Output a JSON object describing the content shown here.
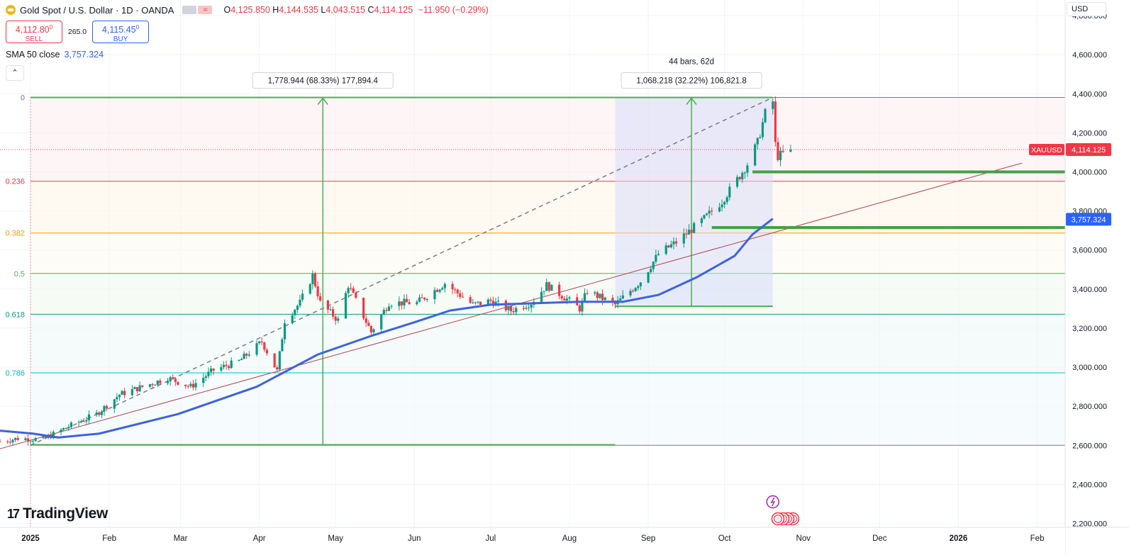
{
  "header": {
    "title": "Gold Spot / U.S. Dollar · 1D · OANDA",
    "market_badge": "≈",
    "open_label": "O",
    "open": "4,125.850",
    "high_label": "H",
    "high": "4,144.535",
    "low_label": "L",
    "low": "4,043.515",
    "close_label": "C",
    "close": "4,114.125",
    "change": "−11.950 (−0.29%)"
  },
  "trade": {
    "sell_price": "4,112.80",
    "sell_sup": "0",
    "sell_label": "SELL",
    "spread": "265.0",
    "buy_price": "4,115.45",
    "buy_sup": "0",
    "buy_label": "BUY"
  },
  "indicator": {
    "label": "SMA 50 close",
    "value": "3,757.324"
  },
  "collapse_label": "⌃",
  "currency": "USD",
  "logo_text": "TradingView",
  "logo_mark": "17",
  "chart_data": {
    "type": "candlestick",
    "symbol": "XAUUSD",
    "ylim": [
      2180,
      4880
    ],
    "y_ticks": [
      "2,200.000",
      "2,400.000",
      "2,600.000",
      "2,800.000",
      "3,000.000",
      "3,200.000",
      "3,400.000",
      "3,600.000",
      "3,800.000",
      "4,000.000",
      "4,200.000",
      "4,400.000",
      "4,600.000",
      "4,800.000"
    ],
    "y_tick_values": [
      2200,
      2400,
      2600,
      2800,
      3000,
      3200,
      3400,
      3600,
      3800,
      4000,
      4200,
      4400,
      4600,
      4800
    ],
    "x_range": [
      "2024-12-20",
      "2026-02-12"
    ],
    "x_labels": [
      {
        "date": "2025-01-01",
        "label": "2025",
        "bold": true
      },
      {
        "date": "2025-02-01",
        "label": "Feb"
      },
      {
        "date": "2025-03-01",
        "label": "Mar"
      },
      {
        "date": "2025-04-01",
        "label": "Apr"
      },
      {
        "date": "2025-05-01",
        "label": "May"
      },
      {
        "date": "2025-06-01",
        "label": "Jun"
      },
      {
        "date": "2025-07-01",
        "label": "Jul"
      },
      {
        "date": "2025-08-01",
        "label": "Aug"
      },
      {
        "date": "2025-09-01",
        "label": "Sep"
      },
      {
        "date": "2025-10-01",
        "label": "Oct"
      },
      {
        "date": "2025-11-01",
        "label": "Nov"
      },
      {
        "date": "2025-12-01",
        "label": "Dec"
      },
      {
        "date": "2026-01-01",
        "label": "2026",
        "bold": true
      },
      {
        "date": "2026-02-01",
        "label": "Feb"
      }
    ],
    "price_path": [
      [
        "2024-12-20",
        2620
      ],
      [
        "2024-12-27",
        2635
      ],
      [
        "2025-01-06",
        2630
      ],
      [
        "2025-01-15",
        2690
      ],
      [
        "2025-01-27",
        2760
      ],
      [
        "2025-02-05",
        2860
      ],
      [
        "2025-02-14",
        2900
      ],
      [
        "2025-02-24",
        2945
      ],
      [
        "2025-03-05",
        2900
      ],
      [
        "2025-03-14",
        2985
      ],
      [
        "2025-03-24",
        3030
      ],
      [
        "2025-04-02",
        3130
      ],
      [
        "2025-04-08",
        2980
      ],
      [
        "2025-04-11",
        3240
      ],
      [
        "2025-04-17",
        3330
      ],
      [
        "2025-04-22",
        3470
      ],
      [
        "2025-04-25",
        3330
      ],
      [
        "2025-05-02",
        3240
      ],
      [
        "2025-05-06",
        3420
      ],
      [
        "2025-05-15",
        3180
      ],
      [
        "2025-05-22",
        3330
      ],
      [
        "2025-06-02",
        3330
      ],
      [
        "2025-06-13",
        3430
      ],
      [
        "2025-06-24",
        3320
      ],
      [
        "2025-07-01",
        3340
      ],
      [
        "2025-07-09",
        3290
      ],
      [
        "2025-07-17",
        3330
      ],
      [
        "2025-07-23",
        3420
      ],
      [
        "2025-08-01",
        3340
      ],
      [
        "2025-08-05",
        3300
      ],
      [
        "2025-08-08",
        3390
      ],
      [
        "2025-08-19",
        3320
      ],
      [
        "2025-08-29",
        3440
      ],
      [
        "2025-09-05",
        3580
      ],
      [
        "2025-09-12",
        3640
      ],
      [
        "2025-09-23",
        3760
      ],
      [
        "2025-09-30",
        3850
      ],
      [
        "2025-10-07",
        3980
      ],
      [
        "2025-10-10",
        4040
      ],
      [
        "2025-10-14",
        4150
      ],
      [
        "2025-10-17",
        4300
      ],
      [
        "2025-10-20",
        4360
      ],
      [
        "2025-10-21",
        4140
      ],
      [
        "2025-10-22",
        4080
      ],
      [
        "2025-10-27",
        4114
      ]
    ],
    "sma50_path": [
      [
        "2024-12-20",
        2675
      ],
      [
        "2025-01-02",
        2660
      ],
      [
        "2025-01-12",
        2640
      ],
      [
        "2025-01-28",
        2660
      ],
      [
        "2025-02-28",
        2760
      ],
      [
        "2025-03-31",
        2900
      ],
      [
        "2025-04-24",
        3065
      ],
      [
        "2025-05-15",
        3160
      ],
      [
        "2025-06-01",
        3230
      ],
      [
        "2025-06-15",
        3290
      ],
      [
        "2025-07-01",
        3320
      ],
      [
        "2025-08-05",
        3335
      ],
      [
        "2025-08-22",
        3335
      ],
      [
        "2025-09-05",
        3370
      ],
      [
        "2025-09-20",
        3460
      ],
      [
        "2025-10-05",
        3570
      ],
      [
        "2025-10-12",
        3680
      ],
      [
        "2025-10-20",
        3760
      ]
    ],
    "sma50_value": 3757.324,
    "last_price": 4114.125,
    "last_price_label": "4,114.125",
    "sma_price_label": "3,757.324",
    "fib_levels": [
      {
        "label": "0",
        "value": 4381,
        "color": "#787b86"
      },
      {
        "label": "0.236",
        "value": 3952,
        "color": "#f23645"
      },
      {
        "label": "0.382",
        "value": 3687,
        "color": "#ff9800"
      },
      {
        "label": "0.5",
        "value": 3480,
        "color": "#4caf50"
      },
      {
        "label": "0.618",
        "value": 3271,
        "color": "#089981"
      },
      {
        "label": "0.786",
        "value": 2971,
        "color": "#00bcd4"
      },
      {
        "label": "",
        "value": 2600,
        "color": "#787b86"
      }
    ],
    "fib_range": [
      "2025-01-01",
      "2025-10-20"
    ],
    "measure_1": {
      "label": "1,778.944 (68.33%) 177,894.4",
      "from_date": "2025-01-01",
      "to_date": "2025-08-19",
      "arrow_date": "2025-04-26",
      "low": 2603,
      "high": 4381
    },
    "measure_2": {
      "label": "1,068.218 (32.22%) 106,821.8",
      "bars": "44 bars, 62d",
      "from_date": "2025-08-19",
      "to_date": "2025-10-20",
      "arrow_date": "2025-09-18",
      "low": 3312,
      "high": 4381
    },
    "trendline_red": {
      "from": [
        "2024-12-18",
        2575
      ],
      "to": [
        "2026-01-26",
        4045
      ]
    },
    "trendline_dashed": {
      "from": [
        "2025-01-01",
        2600
      ],
      "to": [
        "2025-10-20",
        4381
      ]
    },
    "support_1": {
      "value": 4000,
      "from_date": "2025-10-12",
      "to_date": "2026-02-12"
    },
    "support_2": {
      "value": 3715,
      "from_date": "2025-09-26",
      "to_date": "2026-02-12"
    },
    "events": [
      {
        "date": "2025-10-20",
        "type": "flash"
      },
      {
        "date": "2025-10-22",
        "type": "us-economic"
      }
    ]
  }
}
